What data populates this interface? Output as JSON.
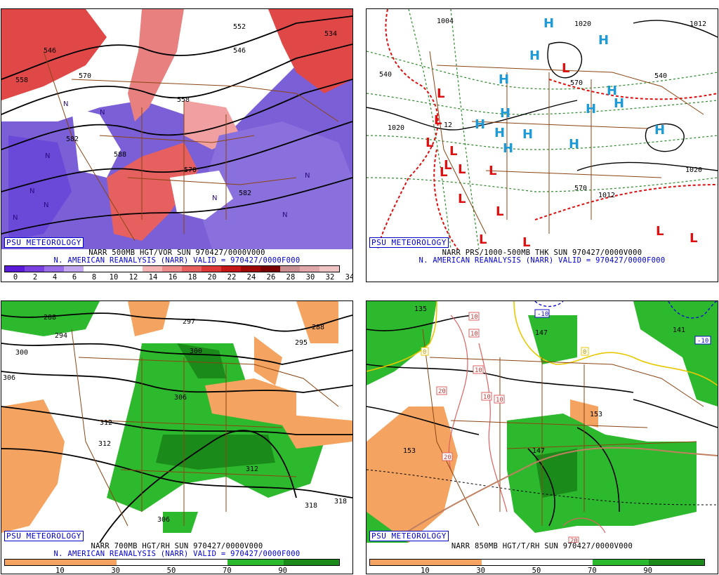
{
  "panels": [
    {
      "id": "p1",
      "badge": "PSU METEOROLOGY",
      "title_line1": "NARR 500MB HGT/VOR SUN 970427/0000V000",
      "title_line2": "N. AMERICAN REANALYSIS (NARR) VALID = 970427/0000F000",
      "colorbar": {
        "ticks": [
          "0",
          "2",
          "4",
          "6",
          "8",
          "10",
          "12",
          "14",
          "16",
          "18",
          "20",
          "22",
          "24",
          "26",
          "28",
          "30",
          "32",
          "34"
        ],
        "colors": [
          "#5a1ad8",
          "#7a40e0",
          "#9a6ee6",
          "#c4a8f0",
          "#ffffff",
          "#ffffff",
          "#ffffff",
          "#f5b5b5",
          "#ee8c8c",
          "#e66060",
          "#dd3838",
          "#c61818",
          "#a00808",
          "#7a0000",
          "#c89090",
          "#e0a8a8",
          "#f0c4c4"
        ]
      },
      "contour_labels": [
        "546",
        "558",
        "570",
        "582",
        "588",
        "552",
        "558",
        "534",
        "546",
        "570",
        "582"
      ],
      "symbols": [
        "N"
      ]
    },
    {
      "id": "p2",
      "badge": "PSU METEOROLOGY",
      "title_line1": "NARR PRS/1000-500MB THK SUN 970427/0000V000",
      "title_line2": "N. AMERICAN REANALYSIS (NARR) VALID = 970427/0000F000",
      "contour_labels": [
        "1004",
        "1020",
        "1012",
        "540",
        "1020",
        "570",
        "1020",
        "1012",
        "570",
        "540",
        "12"
      ],
      "symbols": [
        "H",
        "L"
      ]
    },
    {
      "id": "p3",
      "badge": "PSU METEOROLOGY",
      "title_line1": "NARR 700MB HGT/RH SUN 970427/0000V000",
      "title_line2": "N. AMERICAN REANALYSIS (NARR) VALID = 970427/0000F000",
      "colorbar": {
        "ticks": [
          "10",
          "30",
          "50",
          "70",
          "90"
        ],
        "colors": [
          "#f4a460",
          "#f4a460",
          "#ffffff",
          "#ffffff",
          "#2db92d",
          "#1a8a1a"
        ]
      },
      "contour_labels": [
        "288",
        "294",
        "300",
        "306",
        "297",
        "300",
        "288",
        "295",
        "306",
        "312",
        "312",
        "312",
        "306",
        "318",
        "318"
      ]
    },
    {
      "id": "p4",
      "badge": "PSU METEOROLOGY",
      "title_line1": "NARR 850MB HGT/T/RH SUN 970427/0000V000",
      "colorbar": {
        "ticks": [
          "10",
          "30",
          "50",
          "70",
          "90"
        ],
        "colors": [
          "#f4a460",
          "#f4a460",
          "#ffffff",
          "#ffffff",
          "#2db92d",
          "#1a8a1a"
        ]
      },
      "contour_labels": [
        "135",
        "147",
        "0",
        "153",
        "147",
        "153",
        "141"
      ],
      "temp_boxes": [
        "-10",
        "-10",
        "0",
        "10",
        "10",
        "10",
        "10",
        "20",
        "20",
        "20",
        "0",
        "10"
      ]
    }
  ]
}
